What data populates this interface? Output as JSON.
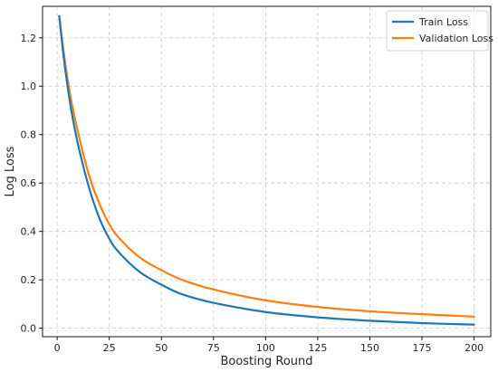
{
  "chart_data": {
    "type": "line",
    "title": "",
    "xlabel": "Boosting Round",
    "ylabel": "Log Loss",
    "xlim": [
      -7,
      208
    ],
    "ylim": [
      -0.035,
      1.33
    ],
    "xticks": [
      0,
      25,
      50,
      75,
      100,
      125,
      150,
      175,
      200
    ],
    "yticks": [
      0.0,
      0.2,
      0.4,
      0.6,
      0.8,
      1.0,
      1.2
    ],
    "grid": true,
    "legend_position": "top-right",
    "x": [
      1,
      3,
      5,
      7,
      10,
      15,
      20,
      25,
      30,
      40,
      50,
      60,
      75,
      100,
      125,
      150,
      175,
      200
    ],
    "series": [
      {
        "name": "Train Loss",
        "color": "#1f77b4",
        "values": [
          1.29,
          1.13,
          1.0,
          0.89,
          0.76,
          0.59,
          0.46,
          0.37,
          0.31,
          0.23,
          0.18,
          0.14,
          0.105,
          0.067,
          0.045,
          0.031,
          0.021,
          0.015
        ]
      },
      {
        "name": "Validation Loss",
        "color": "#ff7f0e",
        "values": [
          1.29,
          1.15,
          1.03,
          0.93,
          0.81,
          0.64,
          0.52,
          0.43,
          0.37,
          0.29,
          0.24,
          0.2,
          0.16,
          0.115,
          0.088,
          0.07,
          0.058,
          0.048
        ]
      }
    ]
  }
}
